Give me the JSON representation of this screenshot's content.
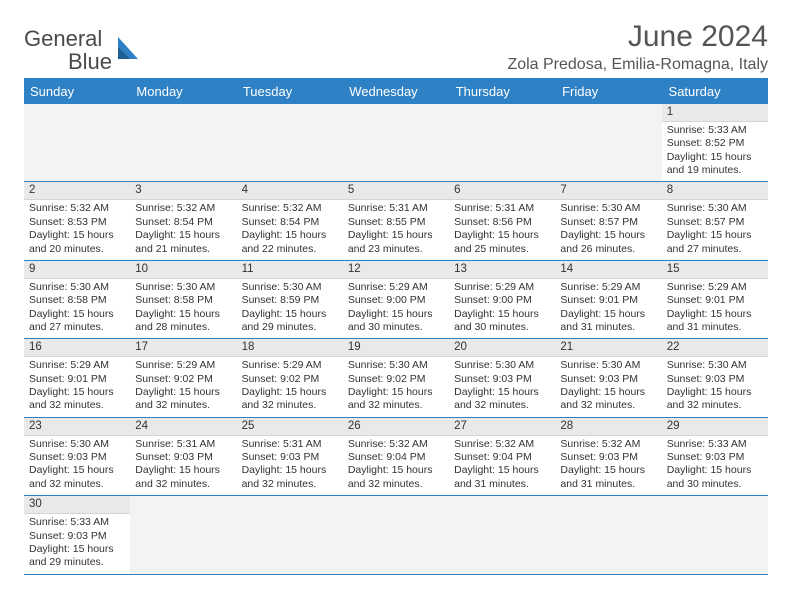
{
  "brand": {
    "name1": "General",
    "name2": "Blue",
    "shape_color": "#2f81c5"
  },
  "title": "June 2024",
  "location": "Zola Predosa, Emilia-Romagna, Italy",
  "colors": {
    "header_bg": "#2f81c5",
    "header_text": "#ffffff",
    "grid_border": "#2f81c5",
    "datebar_bg": "#e9e9e9",
    "empty_bg": "#f3f3f3",
    "body_text": "#333333",
    "background": "#ffffff"
  },
  "typography": {
    "title_fontsize_pt": 22,
    "location_fontsize_pt": 12,
    "dayhead_fontsize_pt": 10,
    "cell_fontsize_pt": 8
  },
  "day_headers": [
    "Sunday",
    "Monday",
    "Tuesday",
    "Wednesday",
    "Thursday",
    "Friday",
    "Saturday"
  ],
  "weeks": [
    [
      {
        "empty": true
      },
      {
        "empty": true
      },
      {
        "empty": true
      },
      {
        "empty": true
      },
      {
        "empty": true
      },
      {
        "empty": true
      },
      {
        "date": "1",
        "sunrise": "Sunrise: 5:33 AM",
        "sunset": "Sunset: 8:52 PM",
        "dl1": "Daylight: 15 hours",
        "dl2": "and 19 minutes."
      }
    ],
    [
      {
        "date": "2",
        "sunrise": "Sunrise: 5:32 AM",
        "sunset": "Sunset: 8:53 PM",
        "dl1": "Daylight: 15 hours",
        "dl2": "and 20 minutes."
      },
      {
        "date": "3",
        "sunrise": "Sunrise: 5:32 AM",
        "sunset": "Sunset: 8:54 PM",
        "dl1": "Daylight: 15 hours",
        "dl2": "and 21 minutes."
      },
      {
        "date": "4",
        "sunrise": "Sunrise: 5:32 AM",
        "sunset": "Sunset: 8:54 PM",
        "dl1": "Daylight: 15 hours",
        "dl2": "and 22 minutes."
      },
      {
        "date": "5",
        "sunrise": "Sunrise: 5:31 AM",
        "sunset": "Sunset: 8:55 PM",
        "dl1": "Daylight: 15 hours",
        "dl2": "and 23 minutes."
      },
      {
        "date": "6",
        "sunrise": "Sunrise: 5:31 AM",
        "sunset": "Sunset: 8:56 PM",
        "dl1": "Daylight: 15 hours",
        "dl2": "and 25 minutes."
      },
      {
        "date": "7",
        "sunrise": "Sunrise: 5:30 AM",
        "sunset": "Sunset: 8:57 PM",
        "dl1": "Daylight: 15 hours",
        "dl2": "and 26 minutes."
      },
      {
        "date": "8",
        "sunrise": "Sunrise: 5:30 AM",
        "sunset": "Sunset: 8:57 PM",
        "dl1": "Daylight: 15 hours",
        "dl2": "and 27 minutes."
      }
    ],
    [
      {
        "date": "9",
        "sunrise": "Sunrise: 5:30 AM",
        "sunset": "Sunset: 8:58 PM",
        "dl1": "Daylight: 15 hours",
        "dl2": "and 27 minutes."
      },
      {
        "date": "10",
        "sunrise": "Sunrise: 5:30 AM",
        "sunset": "Sunset: 8:58 PM",
        "dl1": "Daylight: 15 hours",
        "dl2": "and 28 minutes."
      },
      {
        "date": "11",
        "sunrise": "Sunrise: 5:30 AM",
        "sunset": "Sunset: 8:59 PM",
        "dl1": "Daylight: 15 hours",
        "dl2": "and 29 minutes."
      },
      {
        "date": "12",
        "sunrise": "Sunrise: 5:29 AM",
        "sunset": "Sunset: 9:00 PM",
        "dl1": "Daylight: 15 hours",
        "dl2": "and 30 minutes."
      },
      {
        "date": "13",
        "sunrise": "Sunrise: 5:29 AM",
        "sunset": "Sunset: 9:00 PM",
        "dl1": "Daylight: 15 hours",
        "dl2": "and 30 minutes."
      },
      {
        "date": "14",
        "sunrise": "Sunrise: 5:29 AM",
        "sunset": "Sunset: 9:01 PM",
        "dl1": "Daylight: 15 hours",
        "dl2": "and 31 minutes."
      },
      {
        "date": "15",
        "sunrise": "Sunrise: 5:29 AM",
        "sunset": "Sunset: 9:01 PM",
        "dl1": "Daylight: 15 hours",
        "dl2": "and 31 minutes."
      }
    ],
    [
      {
        "date": "16",
        "sunrise": "Sunrise: 5:29 AM",
        "sunset": "Sunset: 9:01 PM",
        "dl1": "Daylight: 15 hours",
        "dl2": "and 32 minutes."
      },
      {
        "date": "17",
        "sunrise": "Sunrise: 5:29 AM",
        "sunset": "Sunset: 9:02 PM",
        "dl1": "Daylight: 15 hours",
        "dl2": "and 32 minutes."
      },
      {
        "date": "18",
        "sunrise": "Sunrise: 5:29 AM",
        "sunset": "Sunset: 9:02 PM",
        "dl1": "Daylight: 15 hours",
        "dl2": "and 32 minutes."
      },
      {
        "date": "19",
        "sunrise": "Sunrise: 5:30 AM",
        "sunset": "Sunset: 9:02 PM",
        "dl1": "Daylight: 15 hours",
        "dl2": "and 32 minutes."
      },
      {
        "date": "20",
        "sunrise": "Sunrise: 5:30 AM",
        "sunset": "Sunset: 9:03 PM",
        "dl1": "Daylight: 15 hours",
        "dl2": "and 32 minutes."
      },
      {
        "date": "21",
        "sunrise": "Sunrise: 5:30 AM",
        "sunset": "Sunset: 9:03 PM",
        "dl1": "Daylight: 15 hours",
        "dl2": "and 32 minutes."
      },
      {
        "date": "22",
        "sunrise": "Sunrise: 5:30 AM",
        "sunset": "Sunset: 9:03 PM",
        "dl1": "Daylight: 15 hours",
        "dl2": "and 32 minutes."
      }
    ],
    [
      {
        "date": "23",
        "sunrise": "Sunrise: 5:30 AM",
        "sunset": "Sunset: 9:03 PM",
        "dl1": "Daylight: 15 hours",
        "dl2": "and 32 minutes."
      },
      {
        "date": "24",
        "sunrise": "Sunrise: 5:31 AM",
        "sunset": "Sunset: 9:03 PM",
        "dl1": "Daylight: 15 hours",
        "dl2": "and 32 minutes."
      },
      {
        "date": "25",
        "sunrise": "Sunrise: 5:31 AM",
        "sunset": "Sunset: 9:03 PM",
        "dl1": "Daylight: 15 hours",
        "dl2": "and 32 minutes."
      },
      {
        "date": "26",
        "sunrise": "Sunrise: 5:32 AM",
        "sunset": "Sunset: 9:04 PM",
        "dl1": "Daylight: 15 hours",
        "dl2": "and 32 minutes."
      },
      {
        "date": "27",
        "sunrise": "Sunrise: 5:32 AM",
        "sunset": "Sunset: 9:04 PM",
        "dl1": "Daylight: 15 hours",
        "dl2": "and 31 minutes."
      },
      {
        "date": "28",
        "sunrise": "Sunrise: 5:32 AM",
        "sunset": "Sunset: 9:03 PM",
        "dl1": "Daylight: 15 hours",
        "dl2": "and 31 minutes."
      },
      {
        "date": "29",
        "sunrise": "Sunrise: 5:33 AM",
        "sunset": "Sunset: 9:03 PM",
        "dl1": "Daylight: 15 hours",
        "dl2": "and 30 minutes."
      }
    ],
    [
      {
        "date": "30",
        "sunrise": "Sunrise: 5:33 AM",
        "sunset": "Sunset: 9:03 PM",
        "dl1": "Daylight: 15 hours",
        "dl2": "and 29 minutes."
      },
      {
        "empty": true
      },
      {
        "empty": true
      },
      {
        "empty": true
      },
      {
        "empty": true
      },
      {
        "empty": true
      },
      {
        "empty": true
      }
    ]
  ]
}
